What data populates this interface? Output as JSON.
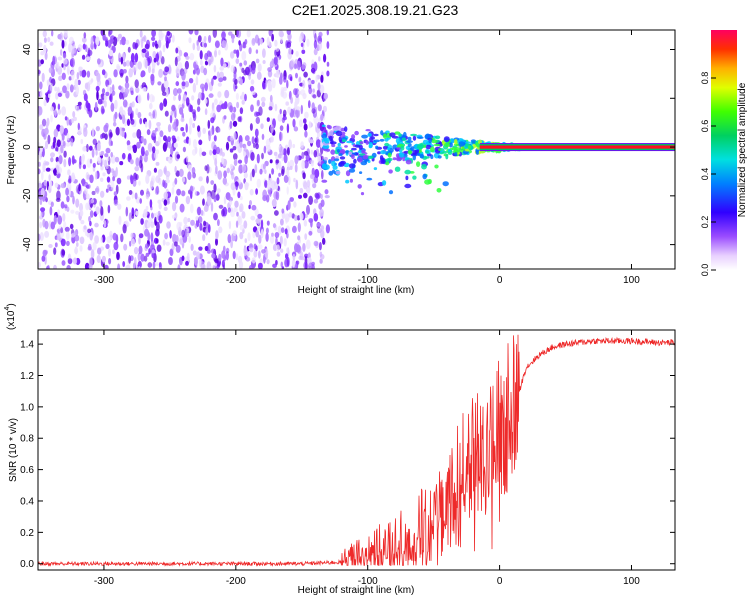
{
  "title": "C2E1.2025.308.19.21.G23",
  "chart_data": [
    {
      "type": "heatmap",
      "name": "spectrogram",
      "xlabel": "Height of straight line (km)",
      "ylabel": "Frequency (Hz)",
      "xlim": [
        -350,
        133
      ],
      "ylim": [
        -50,
        48
      ],
      "xticks": [
        -300,
        -200,
        -100,
        0,
        100
      ],
      "xtick_labels": [
        "-300",
        "-200",
        "-100",
        "0",
        "100"
      ],
      "yticks": [
        -40,
        -20,
        0,
        20,
        40
      ],
      "ytick_labels": [
        "-40",
        "-20",
        "0",
        "20",
        "40"
      ],
      "noise_region_x": [
        -350,
        -130
      ],
      "signal_tone_hz": 0,
      "signal_start_km": -135,
      "colorbar": {
        "label": "Normalized spectral amplitude",
        "range": [
          0,
          1
        ],
        "ticks": [
          0.0,
          0.2,
          0.4,
          0.6,
          0.8
        ],
        "tick_labels": [
          "0.0",
          "0.2",
          "0.4",
          "0.6",
          "0.8"
        ]
      }
    },
    {
      "type": "line",
      "name": "snr",
      "xlabel": "Height of straight line (km)",
      "ylabel": "SNR (10 * v/v)",
      "scale_label_base": "(x10",
      "scale_label_exp": "4",
      "scale_label_end": ")",
      "xlim": [
        -350,
        133
      ],
      "ylim": [
        -0.04,
        1.49
      ],
      "xticks": [
        -300,
        -200,
        -100,
        0,
        100
      ],
      "xtick_labels": [
        "-300",
        "-200",
        "-100",
        "0",
        "100"
      ],
      "yticks": [
        0.0,
        0.2,
        0.4,
        0.6,
        0.8,
        1.0,
        1.2,
        1.4
      ],
      "ytick_labels": [
        "0.0",
        "0.2",
        "0.4",
        "0.6",
        "0.8",
        "1.0",
        "1.2",
        "1.4"
      ],
      "series": [
        {
          "name": "SNR",
          "color": "#ee2a2a",
          "x": [
            -350,
            -300,
            -250,
            -200,
            -150,
            -120,
            -110,
            -100,
            -90,
            -80,
            -70,
            -60,
            -50,
            -45,
            -40,
            -35,
            -30,
            -25,
            -20,
            -15,
            -10,
            -5,
            0,
            5,
            10,
            15,
            20,
            30,
            40,
            50,
            60,
            70,
            80,
            100,
            120,
            133
          ],
          "y": [
            0.0,
            0.0,
            0.0,
            0.0,
            0.0,
            0.01,
            0.03,
            0.05,
            0.08,
            0.1,
            0.14,
            0.19,
            0.25,
            0.3,
            0.36,
            0.45,
            0.55,
            0.62,
            0.68,
            0.72,
            0.8,
            0.85,
            0.88,
            0.9,
            0.98,
            1.1,
            1.25,
            1.33,
            1.38,
            1.4,
            1.41,
            1.42,
            1.42,
            1.42,
            1.41,
            1.41
          ]
        }
      ]
    }
  ]
}
